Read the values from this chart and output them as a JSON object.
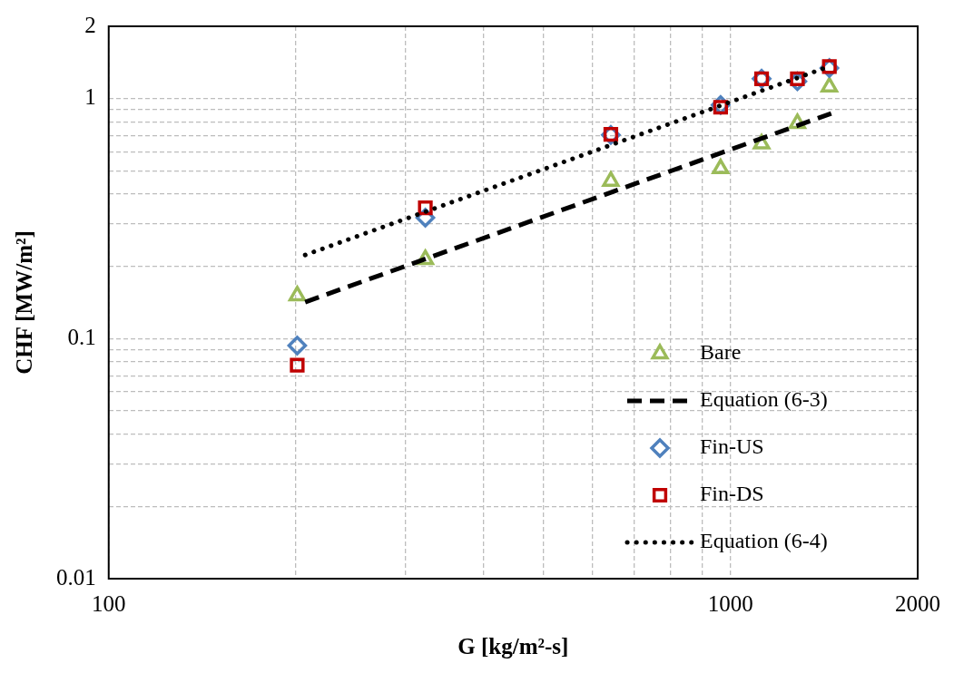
{
  "chart_data": {
    "type": "scatter",
    "xlabel": "G [kg/m²-s]",
    "ylabel": "CHF [MW/m²]",
    "log": "xy",
    "grid": true,
    "legend": "bottom right",
    "xlim": [
      100,
      2000
    ],
    "ylim": [
      0.01,
      2
    ],
    "xticks": [
      100,
      {
        "value": 200,
        "label": null
      },
      {
        "value": 300,
        "label": null
      },
      {
        "value": 400,
        "label": null
      },
      {
        "value": 500,
        "label": null
      },
      {
        "value": 600,
        "label": null
      },
      {
        "value": 700,
        "label": null
      },
      {
        "value": 800,
        "label": null
      },
      {
        "value": 900,
        "label": null
      },
      1000,
      2000
    ],
    "yticks": [
      0.01,
      {
        "value": 0.02,
        "label": null
      },
      {
        "value": 0.03,
        "label": null
      },
      {
        "value": 0.04,
        "label": null
      },
      {
        "value": 0.05,
        "label": null
      },
      {
        "value": 0.06,
        "label": null
      },
      {
        "value": 0.07,
        "label": null
      },
      {
        "value": 0.08,
        "label": null
      },
      {
        "value": 0.09,
        "label": null
      },
      0.1,
      {
        "value": 0.2,
        "label": null
      },
      {
        "value": 0.3,
        "label": null
      },
      {
        "value": 0.4,
        "label": null
      },
      {
        "value": 0.5,
        "label": null
      },
      {
        "value": 0.6,
        "label": null
      },
      {
        "value": 0.7,
        "label": null
      },
      {
        "value": 0.8,
        "label": null
      },
      {
        "value": 0.9,
        "label": null
      },
      1,
      2
    ],
    "x": [
      201,
      323,
      642,
      964,
      1122,
      1281,
      1442
    ],
    "series": [
      {
        "name": "Bare",
        "type": "scatter",
        "marker": "triangle",
        "color": "#9bbb59",
        "values": [
          0.151,
          0.214,
          0.453,
          0.511,
          0.648,
          0.789,
          1.12
        ]
      },
      {
        "name": "Equation (6-3)",
        "type": "line",
        "marker": "none",
        "line_style": "dashed",
        "color": "#000000",
        "x": [
          207,
          1452
        ],
        "values": [
          0.142,
          0.867
        ]
      },
      {
        "name": "Fin-US",
        "type": "scatter",
        "marker": "diamond",
        "color": "#4f81bd",
        "values": [
          0.0935,
          0.319,
          0.706,
          0.94,
          1.21,
          1.18,
          1.34
        ]
      },
      {
        "name": "Fin-DS",
        "type": "scatter",
        "marker": "square",
        "color": "#c00000",
        "values": [
          0.0775,
          0.351,
          0.71,
          0.92,
          1.21,
          1.21,
          1.36
        ]
      },
      {
        "name": "Equation (6-4)",
        "type": "line",
        "marker": "none",
        "line_style": "dotted",
        "color": "#000000",
        "x": [
          207,
          1440
        ],
        "values": [
          0.223,
          1.36
        ]
      }
    ]
  }
}
